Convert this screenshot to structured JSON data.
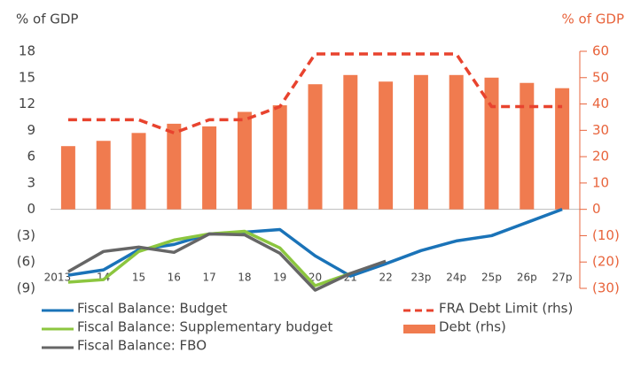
{
  "chart_data": {
    "type": "combo",
    "ylabel": "% of GDP",
    "y2label": "% of GDP",
    "categories": [
      "2013",
      "14",
      "15",
      "16",
      "17",
      "18",
      "19",
      "20",
      "21",
      "22",
      "23p",
      "24p",
      "25p",
      "26p",
      "27p"
    ],
    "ylim": [
      -9,
      18
    ],
    "yticks": [
      {
        "value": -9,
        "label": "(9)"
      },
      {
        "value": -6,
        "label": "(6)"
      },
      {
        "value": -3,
        "label": "(3)"
      },
      0,
      3,
      6,
      9,
      12,
      15,
      18
    ],
    "y2lim": [
      -30,
      60
    ],
    "y2ticks": [
      {
        "value": -30,
        "label": "(30)"
      },
      {
        "value": -20,
        "label": "(20)"
      },
      {
        "value": -10,
        "label": "(10)"
      },
      0,
      10,
      20,
      30,
      40,
      50,
      60
    ],
    "series": [
      {
        "name": "Fiscal Balance: Budget",
        "type": "line",
        "color": "#1a73b8",
        "values": [
          -7.5,
          -6.9,
          -4.6,
          -4.0,
          -2.8,
          -2.6,
          -2.3,
          -5.3,
          -7.6,
          -6.2,
          -4.7,
          -3.6,
          -3.0,
          -1.5,
          0
        ]
      },
      {
        "name": "Fiscal Balance: Supplementary budget",
        "type": "line",
        "color": "#8cc63f",
        "values": [
          -8.3,
          -8.0,
          -4.8,
          -3.5,
          -2.8,
          -2.5,
          -4.4,
          -8.7,
          -7.3,
          null,
          null,
          null,
          null,
          null,
          null
        ]
      },
      {
        "name": "Fiscal Balance: FBO",
        "type": "line",
        "color": "#666666",
        "values": [
          -7.1,
          -4.8,
          -4.3,
          -4.9,
          -2.8,
          -2.9,
          -5.0,
          -9.2,
          -7.3,
          -5.9,
          null,
          null,
          null,
          null,
          null
        ]
      },
      {
        "name": "FRA Debt Limit (rhs)",
        "type": "dashed",
        "axis": "y2",
        "color": "#e8432e",
        "values": [
          34,
          34,
          34,
          29,
          34,
          34,
          39,
          59,
          59,
          59,
          59,
          59,
          39,
          39,
          39
        ]
      },
      {
        "name": "Debt (rhs)",
        "type": "bar",
        "axis": "y2",
        "color": "#f07b4f",
        "values": [
          24,
          26,
          29,
          32.5,
          31.5,
          37,
          39.5,
          47.5,
          51,
          48.5,
          51,
          51,
          50,
          48,
          46
        ]
      }
    ]
  }
}
